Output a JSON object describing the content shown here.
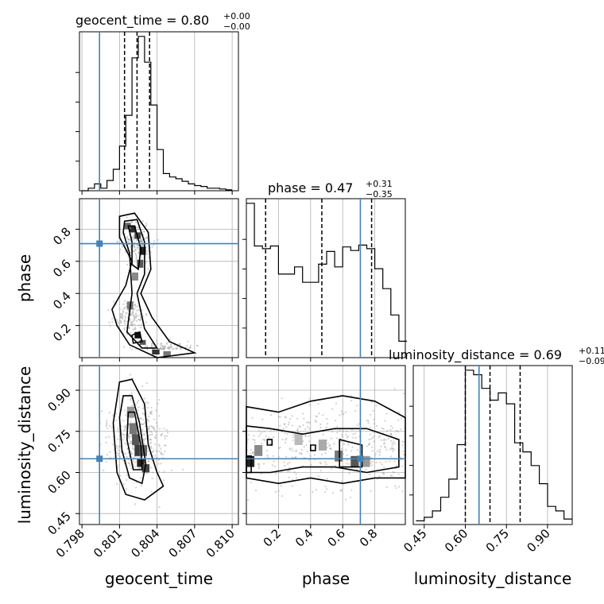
{
  "chart_data": {
    "type": "corner",
    "parameters": [
      "geocent_time",
      "phase",
      "luminosity_distance"
    ],
    "axis_labels": {
      "geocent_time": "geocent_time",
      "phase": "phase",
      "luminosity_distance": "luminosity_distance"
    },
    "ranges": {
      "geocent_time": [
        0.7978,
        0.8105
      ],
      "phase": [
        0.0,
        0.99
      ],
      "luminosity_distance": [
        0.41,
        0.99
      ]
    },
    "ticks": {
      "geocent_time": [
        "0.798",
        "0.801",
        "0.804",
        "0.807",
        "0.810"
      ],
      "phase": [
        "0.2",
        "0.4",
        "0.6",
        "0.8"
      ],
      "phase_y": [
        "0.2",
        "0.4",
        "0.6",
        "0.8"
      ],
      "luminosity_distance": [
        "0.45",
        "0.60",
        "0.75",
        "0.90"
      ]
    },
    "titles": {
      "geocent_time": {
        "prefix": "geocent_time = 0.80",
        "plus": "+0.00",
        "minus": "−0.00"
      },
      "phase": {
        "prefix": "phase = 0.47",
        "plus": "+0.31",
        "minus": "−0.35"
      },
      "luminosity_distance": {
        "prefix": "luminosity_distance = 0.69",
        "plus": "+0.11",
        "minus": "−0.09"
      }
    },
    "truths": {
      "geocent_time": 0.7994,
      "phase": 0.71,
      "luminosity_distance": 0.65
    },
    "quantiles": {
      "geocent_time": [
        0.8014,
        0.8024,
        0.8034
      ],
      "phase": [
        0.12,
        0.47,
        0.78
      ],
      "luminosity_distance": [
        0.6,
        0.69,
        0.8
      ]
    },
    "histograms": {
      "geocent_time": {
        "edges": [
          0.798,
          0.7985,
          0.799,
          0.7995,
          0.8,
          0.8005,
          0.801,
          0.8015,
          0.802,
          0.8025,
          0.803,
          0.8035,
          0.804,
          0.8045,
          0.805,
          0.8055,
          0.806,
          0.8065,
          0.807,
          0.8075,
          0.808,
          0.8085,
          0.809,
          0.8095,
          0.81
        ],
        "counts": [
          0,
          3,
          8,
          3,
          12,
          25,
          52,
          88,
          155,
          180,
          150,
          100,
          48,
          20,
          16,
          14,
          11,
          8,
          6,
          5,
          3,
          3,
          2,
          1
        ]
      },
      "phase": {
        "edges": [
          0.0,
          0.05,
          0.1,
          0.15,
          0.2,
          0.25,
          0.3,
          0.35,
          0.4,
          0.45,
          0.5,
          0.55,
          0.6,
          0.65,
          0.7,
          0.75,
          0.8,
          0.85,
          0.9,
          0.95,
          1.0
        ],
        "counts": [
          170,
          123,
          120,
          123,
          92,
          92,
          100,
          83,
          83,
          103,
          117,
          100,
          122,
          118,
          124,
          120,
          98,
          76,
          47,
          18
        ]
      },
      "luminosity_distance": {
        "edges": [
          0.42,
          0.45,
          0.48,
          0.51,
          0.54,
          0.57,
          0.6,
          0.63,
          0.66,
          0.69,
          0.72,
          0.75,
          0.78,
          0.81,
          0.84,
          0.87,
          0.9,
          0.93,
          0.96,
          0.99
        ],
        "counts": [
          4,
          8,
          15,
          30,
          50,
          88,
          170,
          165,
          150,
          137,
          145,
          133,
          90,
          80,
          65,
          45,
          20,
          15,
          6
        ]
      }
    }
  }
}
